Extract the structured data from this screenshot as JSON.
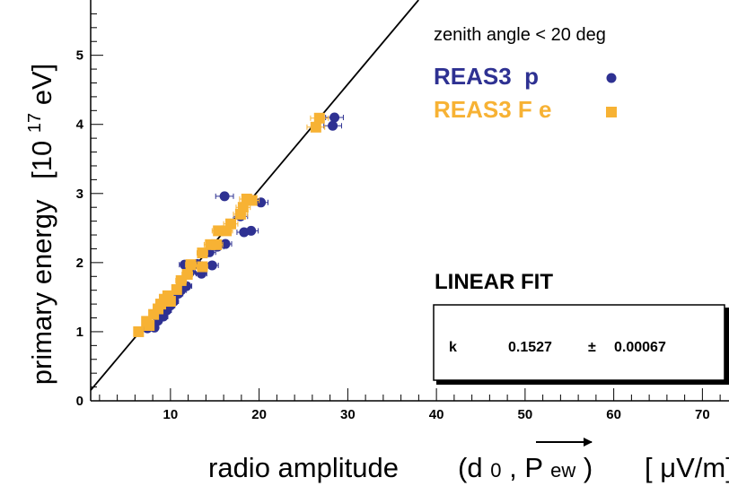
{
  "chart_data": {
    "type": "scatter",
    "xlabel": "radio amplitude",
    "xlabel_extra": {
      "open": "(d",
      "sub": "0",
      "comma": ",",
      "P": "P",
      "ew": "ew",
      "close": ")",
      "unit": "[ μV/m]"
    },
    "ylabel": "primary energy",
    "ylabel_unit": {
      "open": "[10",
      "exp": "17",
      "rest": "eV]"
    },
    "xlim": [
      1,
      73
    ],
    "ylim": [
      0,
      5.8
    ],
    "x_ticks": [
      10,
      20,
      30,
      40,
      50,
      60,
      70
    ],
    "y_ticks": [
      0,
      1,
      2,
      3,
      4,
      5
    ],
    "grid": false,
    "legend_placement": "top-right",
    "legend_note": "zenith angle < 20 deg",
    "series": [
      {
        "name": "REAS3  p",
        "marker": "circle",
        "color": "#2e3192",
        "points": [
          [
            7.4,
            1.05,
            0.4
          ],
          [
            8.2,
            1.06,
            0.4
          ],
          [
            8.6,
            1.16,
            0.4
          ],
          [
            9.2,
            1.22,
            0.5
          ],
          [
            9.6,
            1.31,
            0.5
          ],
          [
            10.0,
            1.38,
            0.5
          ],
          [
            10.4,
            1.44,
            0.5
          ],
          [
            10.9,
            1.55,
            0.5
          ],
          [
            11.2,
            1.6,
            0.6
          ],
          [
            11.8,
            1.66,
            0.6
          ],
          [
            11.6,
            1.97,
            0.6
          ],
          [
            12.2,
            1.86,
            0.6
          ],
          [
            13.5,
            1.84,
            0.6
          ],
          [
            13.0,
            1.98,
            0.6
          ],
          [
            14.4,
            2.15,
            0.7
          ],
          [
            14.7,
            1.96,
            0.7
          ],
          [
            15.3,
            2.23,
            0.7
          ],
          [
            16.2,
            2.27,
            0.7
          ],
          [
            16.1,
            2.96,
            1.0
          ],
          [
            18.3,
            2.44,
            0.8
          ],
          [
            19.1,
            2.46,
            0.8
          ],
          [
            17.9,
            2.67,
            0.8
          ],
          [
            20.2,
            2.87,
            0.8
          ],
          [
            28.3,
            3.98,
            1.0
          ],
          [
            28.5,
            4.1,
            1.0
          ]
        ]
      },
      {
        "name": "REAS3 F e",
        "marker": "square",
        "color": "#f7b234",
        "points": [
          [
            6.4,
            1.0,
            0.4
          ],
          [
            7.3,
            1.15,
            0.4
          ],
          [
            7.6,
            1.09,
            0.4
          ],
          [
            8.1,
            1.25,
            0.4
          ],
          [
            8.6,
            1.33,
            0.4
          ],
          [
            8.9,
            1.4,
            0.5
          ],
          [
            9.3,
            1.47,
            0.5
          ],
          [
            9.7,
            1.52,
            0.5
          ],
          [
            10.0,
            1.44,
            0.5
          ],
          [
            10.7,
            1.61,
            0.5
          ],
          [
            11.2,
            1.74,
            0.6
          ],
          [
            11.9,
            1.83,
            0.6
          ],
          [
            12.3,
            1.97,
            0.6
          ],
          [
            13.6,
            1.94,
            0.6
          ],
          [
            13.6,
            2.14,
            0.6
          ],
          [
            14.5,
            2.26,
            0.7
          ],
          [
            15.2,
            2.26,
            0.7
          ],
          [
            15.4,
            2.46,
            0.7
          ],
          [
            16.3,
            2.46,
            0.7
          ],
          [
            16.8,
            2.56,
            0.8
          ],
          [
            17.9,
            2.7,
            0.8
          ],
          [
            18.2,
            2.8,
            0.8
          ],
          [
            18.6,
            2.92,
            0.8
          ],
          [
            19.2,
            2.9,
            0.8
          ],
          [
            26.4,
            3.96,
            1.0
          ],
          [
            26.8,
            4.09,
            1.0
          ]
        ]
      }
    ],
    "fit": {
      "title": "LINEAR FIT",
      "param_name": "k",
      "value": "0.1527",
      "pm": "±",
      "error": "0.00067",
      "k": 0.1527
    }
  }
}
